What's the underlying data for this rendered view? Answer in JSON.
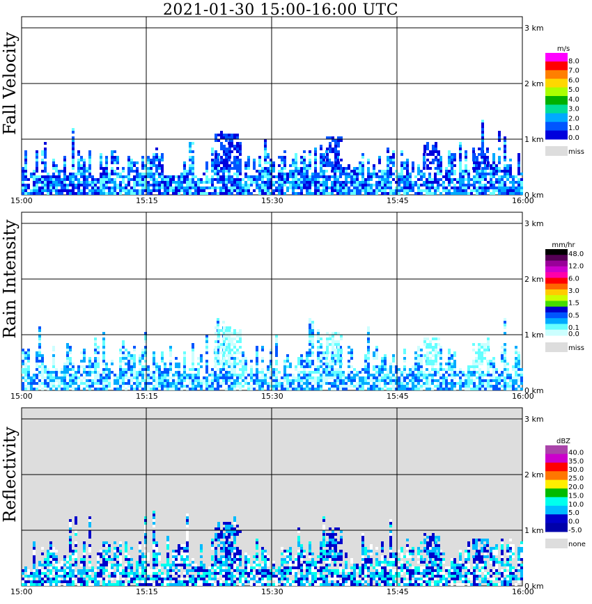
{
  "title": "2021-01-30   15:00-16:00 UTC",
  "chart_data": [
    {
      "type": "heatmap",
      "ylabel": "Fall Velocity",
      "x_ticks": [
        "15:00",
        "15:15",
        "15:30",
        "15:45",
        "16:00"
      ],
      "y_ticks": [
        "0 km",
        "1 km",
        "2 km",
        "3 km"
      ],
      "ylim_km": [
        0,
        3.1
      ],
      "grid": true,
      "background": "#ffffff",
      "legend": {
        "unit": "m/s",
        "labels": [
          "8.0",
          "7.0",
          "6.0",
          "5.0",
          "4.0",
          "3.0",
          "2.0",
          "1.0",
          "0.0"
        ],
        "colors": [
          "#ff00ff",
          "#ff0000",
          "#ff7f00",
          "#ffd700",
          "#aaff00",
          "#00b000",
          "#00dd99",
          "#00aaff",
          "#0055ff",
          "#0000dd"
        ],
        "miss_label": "miss",
        "miss_color": "#dddddd"
      }
    },
    {
      "type": "heatmap",
      "ylabel": "Rain Intensity",
      "x_ticks": [
        "15:00",
        "15:15",
        "15:30",
        "15:45",
        "16:00"
      ],
      "y_ticks": [
        "0 km",
        "1 km",
        "2 km",
        "3 km"
      ],
      "ylim_km": [
        0,
        3.1
      ],
      "grid": true,
      "background": "#ffffff",
      "legend": {
        "unit": "mm/hr",
        "labels": [
          "48.0",
          "",
          "12.0",
          "",
          "6.0",
          "",
          "3.0",
          "",
          "1.5",
          "",
          "0.5",
          "",
          "0.1",
          "0.0"
        ],
        "colors": [
          "#000000",
          "#550055",
          "#990099",
          "#cc00cc",
          "#ff00aa",
          "#ff0000",
          "#ff6600",
          "#ffcc00",
          "#ccff00",
          "#44dd00",
          "#0000cc",
          "#0055ff",
          "#00aaff",
          "#66ffff",
          "#ccffff"
        ],
        "miss_label": "miss",
        "miss_color": "#dddddd"
      }
    },
    {
      "type": "heatmap",
      "ylabel": "Reflectivity",
      "x_ticks": [
        "15:00",
        "15:15",
        "15:30",
        "15:45",
        "16:00"
      ],
      "y_ticks": [
        "0 km",
        "1 km",
        "2 km",
        "3 km"
      ],
      "ylim_km": [
        0,
        3.1
      ],
      "grid": true,
      "background": "#dddddd",
      "legend": {
        "unit": "dBZ",
        "labels": [
          "40.0",
          "35.0",
          "30.0",
          "25.0",
          "20.0",
          "15.0",
          "10.0",
          "5.0",
          "0.0",
          "-5.0"
        ],
        "colors": [
          "#aa44aa",
          "#cc00cc",
          "#ff0000",
          "#ff7700",
          "#ffee00",
          "#00bb00",
          "#00ffee",
          "#00bbff",
          "#0000cc",
          "#0000aa"
        ],
        "miss_label": "none",
        "miss_color": "#dddddd"
      }
    }
  ]
}
